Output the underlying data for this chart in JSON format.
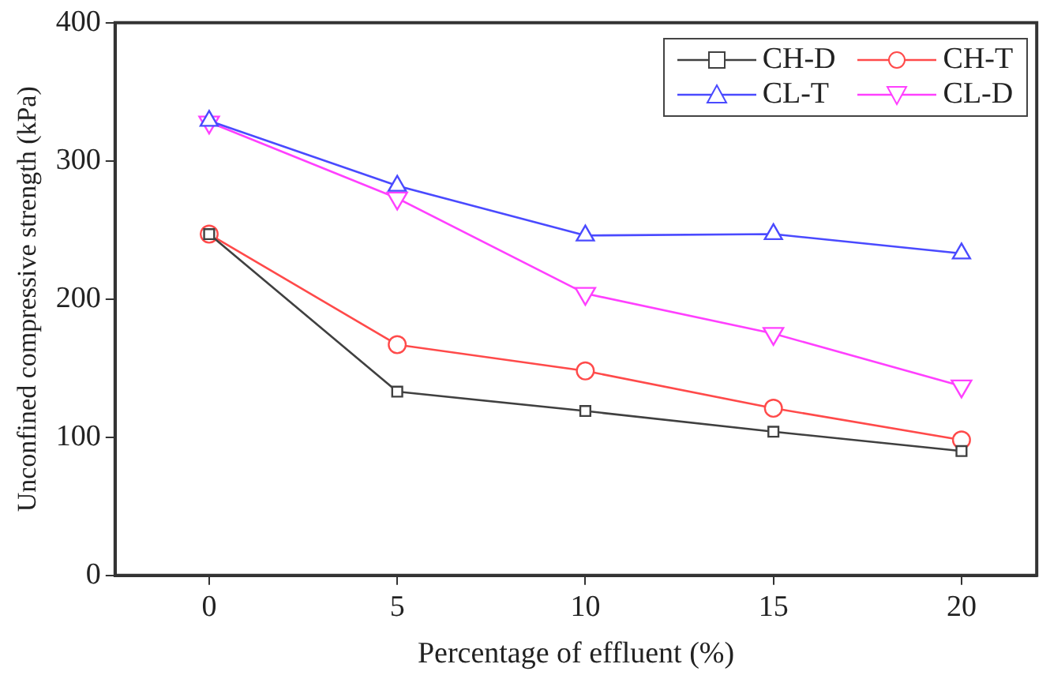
{
  "chart_data": {
    "type": "line",
    "xlabel": "Percentage of effluent (%)",
    "ylabel": "Unconfined compressive strength (kPa)",
    "x": [
      0,
      5,
      10,
      15,
      20
    ],
    "series": [
      {
        "name": "CH-D",
        "color": "#404040",
        "marker": "square",
        "values": [
          247,
          133,
          119,
          104,
          90
        ]
      },
      {
        "name": "CH-T",
        "color": "#ff4a4a",
        "marker": "circle",
        "values": [
          247,
          167,
          148,
          121,
          98
        ]
      },
      {
        "name": "CL-T",
        "color": "#4a4aff",
        "marker": "triangle",
        "values": [
          329,
          282,
          246,
          247,
          233
        ]
      },
      {
        "name": "CL-D",
        "color": "#ff40ff",
        "marker": "triangle-down",
        "values": [
          328,
          273,
          204,
          175,
          137
        ]
      }
    ],
    "xlim": [
      -2.5,
      22
    ],
    "xticks": [
      0,
      5,
      10,
      15,
      20
    ],
    "ylim": [
      0,
      400
    ],
    "yticks": [
      0,
      100,
      200,
      300,
      400
    ],
    "grid": false,
    "legend": "top right",
    "line_style": "solid"
  }
}
